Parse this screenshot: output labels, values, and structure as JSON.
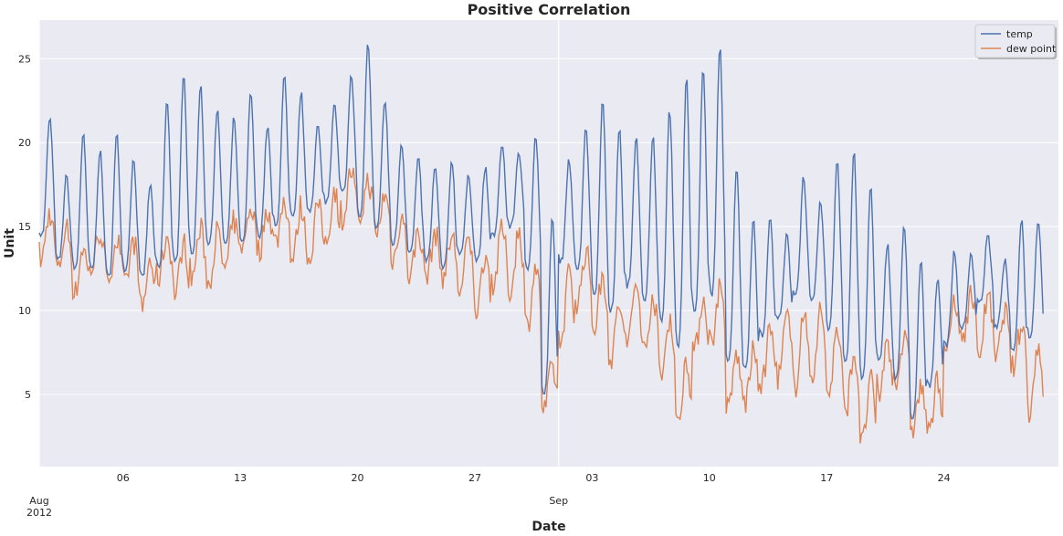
{
  "chart_data": {
    "type": "line",
    "title": "Positive Correlation",
    "xlabel": "Date",
    "ylabel": "Unit",
    "x_range": [
      "2012-08-01",
      "2012-09-30"
    ],
    "ylim": [
      0.7,
      27.3
    ],
    "grid": true,
    "legend_position": "top-right",
    "y_ticks": [
      5,
      10,
      15,
      20,
      25
    ],
    "x_ticks": [
      {
        "date": "2012-08-01",
        "label": "",
        "major_label": "Aug\n2012"
      },
      {
        "date": "2012-08-06",
        "label": "06"
      },
      {
        "date": "2012-08-13",
        "label": "13"
      },
      {
        "date": "2012-08-20",
        "label": "20"
      },
      {
        "date": "2012-08-27",
        "label": "27"
      },
      {
        "date": "2012-09-01",
        "label": "",
        "major_label": "Sep"
      },
      {
        "date": "2012-09-03",
        "label": "03"
      },
      {
        "date": "2012-09-10",
        "label": "10"
      },
      {
        "date": "2012-09-17",
        "label": "17"
      },
      {
        "date": "2012-09-24",
        "label": "24"
      }
    ],
    "series": [
      {
        "name": "temp",
        "color": "#4c72b0",
        "daily_min": [
          14.5,
          13.0,
          12.5,
          12.5,
          12.0,
          12.5,
          12.0,
          12.5,
          13.0,
          13.5,
          14.0,
          14.0,
          14.0,
          14.5,
          15.0,
          15.5,
          16.0,
          16.5,
          17.0,
          15.5,
          15.0,
          14.0,
          13.5,
          13.0,
          12.5,
          13.5,
          13.0,
          14.5,
          15.0,
          12.5,
          5.0,
          13.0,
          12.5,
          11.0,
          10.0,
          11.5,
          10.5,
          9.5,
          8.0,
          10.0,
          11.0,
          7.0,
          6.5,
          8.5,
          9.5,
          11.0,
          10.5,
          9.0,
          7.0,
          6.0,
          7.0,
          6.0,
          3.5,
          5.5,
          8.0,
          9.0,
          10.5,
          9.0,
          7.5,
          8.5
        ],
        "daily_max": [
          21.5,
          18.0,
          20.5,
          19.5,
          20.5,
          19.0,
          17.5,
          22.5,
          24.0,
          23.5,
          22.0,
          21.5,
          23.0,
          21.0,
          24.0,
          23.0,
          21.0,
          22.5,
          24.0,
          26.0,
          22.5,
          20.0,
          19.0,
          18.5,
          19.0,
          18.0,
          18.5,
          20.0,
          19.5,
          20.5,
          15.5,
          19.0,
          21.0,
          22.5,
          21.0,
          20.5,
          20.5,
          22.0,
          24.0,
          24.5,
          25.8,
          18.5,
          15.5,
          15.5,
          14.5,
          18.0,
          16.5,
          19.0,
          19.5,
          17.5,
          14.0,
          15.0,
          13.0,
          12.0,
          13.5,
          13.5,
          14.5,
          13.0,
          15.5,
          15.5
        ]
      },
      {
        "name": "dew point",
        "color": "#dd8452",
        "daily_min": [
          13.0,
          12.5,
          11.0,
          12.5,
          12.0,
          11.5,
          10.0,
          12.0,
          11.0,
          12.0,
          11.5,
          12.5,
          14.0,
          13.5,
          14.0,
          13.0,
          13.0,
          14.0,
          15.5,
          15.5,
          14.5,
          13.0,
          12.0,
          12.0,
          12.0,
          11.0,
          10.0,
          11.5,
          11.0,
          9.0,
          4.0,
          8.0,
          10.5,
          9.0,
          7.0,
          8.0,
          7.5,
          6.0,
          3.0,
          7.5,
          8.0,
          4.0,
          4.5,
          5.5,
          6.0,
          5.5,
          6.0,
          5.0,
          4.0,
          2.0,
          5.0,
          6.0,
          3.0,
          2.5,
          8.0,
          8.5,
          7.5,
          7.0,
          6.5,
          4.0
        ]
      }
    ]
  }
}
